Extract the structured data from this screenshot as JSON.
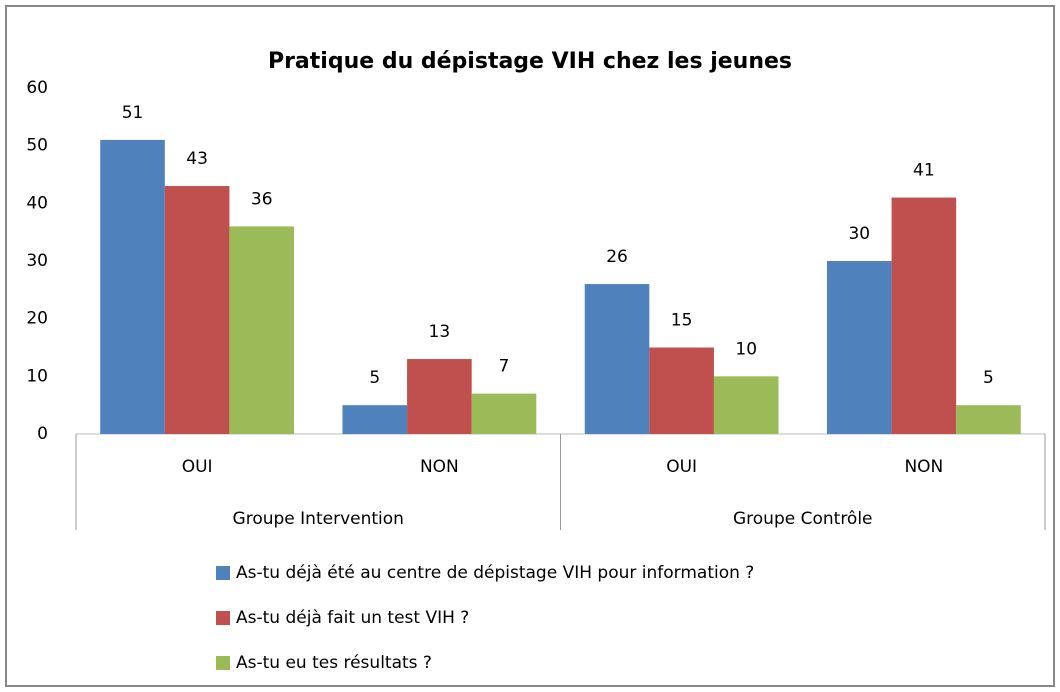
{
  "chart_data": {
    "type": "bar",
    "title": "Pratique du dépistage VIH chez les jeunes",
    "categories": [
      "OUI",
      "NON",
      "OUI",
      "NON"
    ],
    "groups": [
      "Groupe Intervention",
      "Groupe Contrôle"
    ],
    "series": [
      {
        "name": "As-tu déjà été au centre de dépistage VIH pour information ?",
        "color": "#4f81bd",
        "values": [
          51,
          5,
          26,
          30
        ]
      },
      {
        "name": "As-tu déjà fait un test VIH ?",
        "color": "#c0504d",
        "values": [
          43,
          13,
          15,
          41
        ]
      },
      {
        "name": "As-tu eu tes résultats ?",
        "color": "#9bbb59",
        "values": [
          36,
          7,
          10,
          5
        ]
      }
    ],
    "ylim": [
      0,
      60
    ],
    "yticks": [
      0,
      10,
      20,
      30,
      40,
      50,
      60
    ],
    "grid": false,
    "legend": "bottom"
  }
}
